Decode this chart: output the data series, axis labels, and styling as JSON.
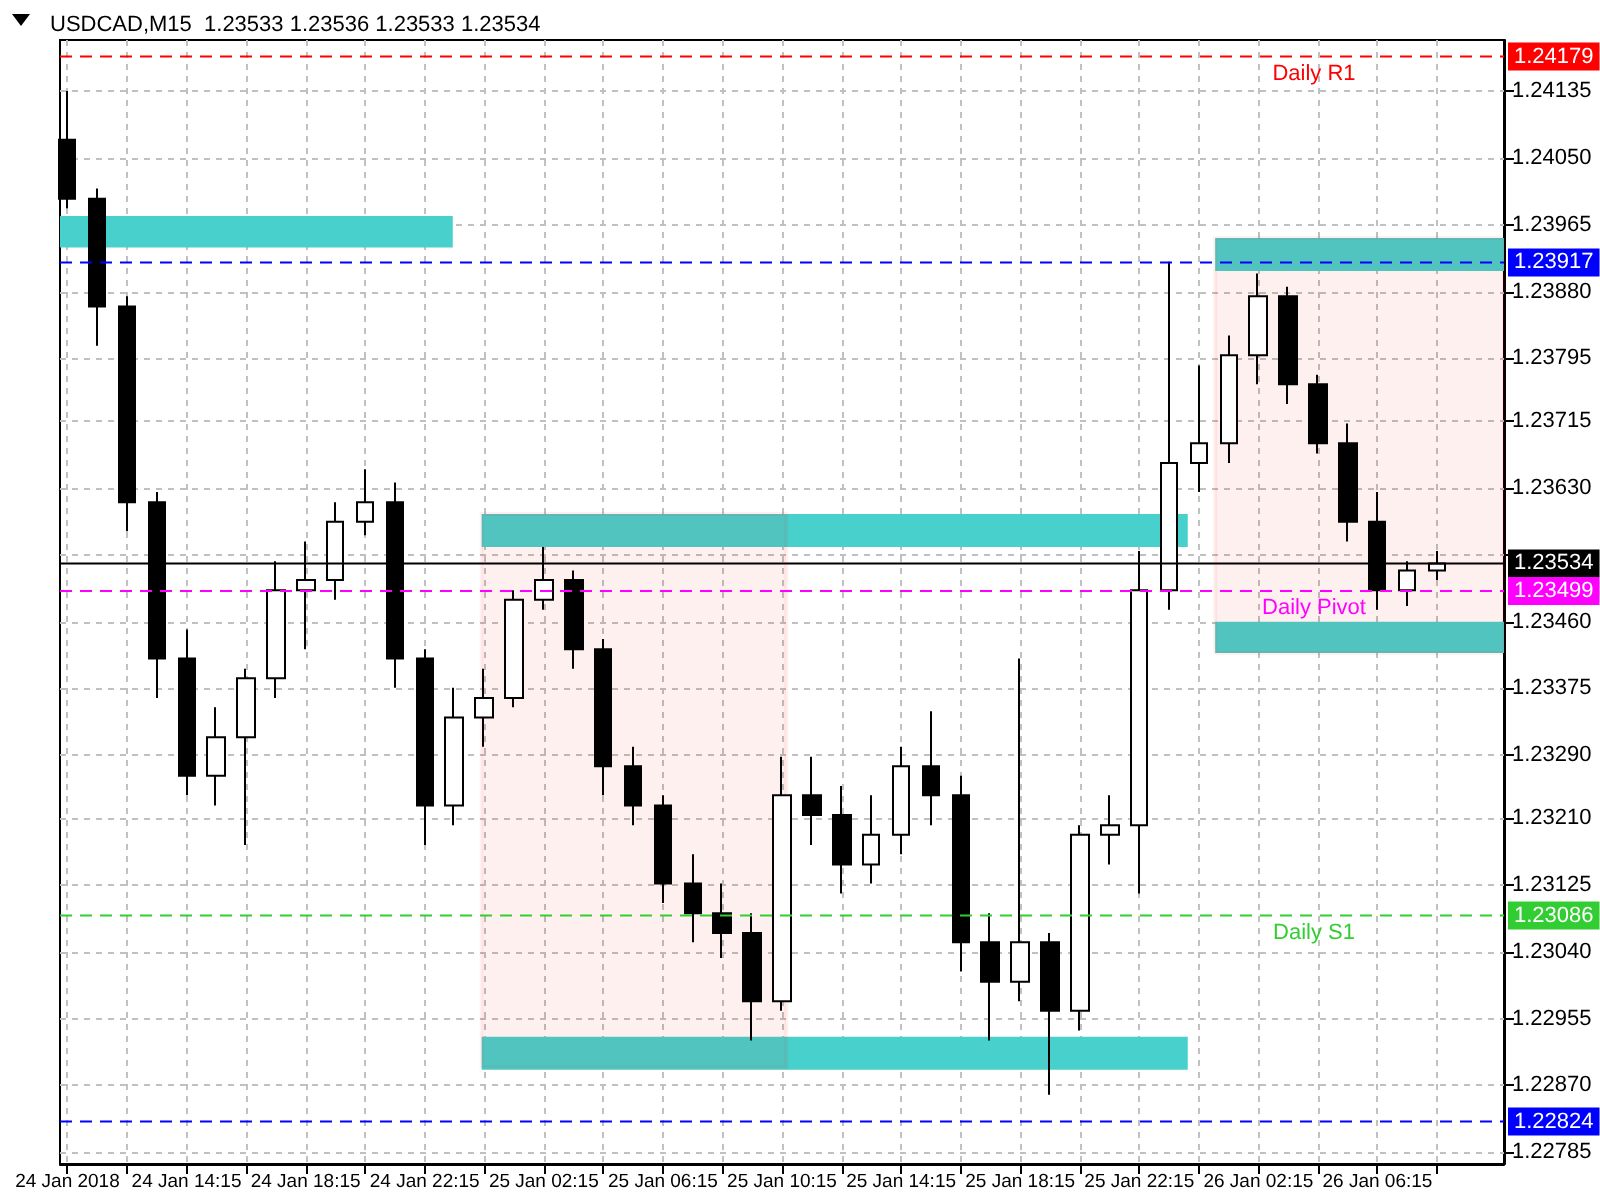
{
  "chart_data": {
    "type": "candlestick",
    "title": "USDCAD,M15  1.23533 1.23536 1.23533 1.23534",
    "x": [
      "2018-01-24T10:15",
      "2018-01-24T11:15",
      "2018-01-24T12:15",
      "2018-01-24T13:15",
      "2018-01-24T14:15",
      "2018-01-24T15:15",
      "2018-01-24T16:15",
      "2018-01-24T17:15",
      "2018-01-24T18:15",
      "2018-01-24T19:15",
      "2018-01-24T20:15",
      "2018-01-24T21:15",
      "2018-01-24T22:15",
      "2018-01-24T23:15",
      "2018-01-25T00:15",
      "2018-01-25T01:15",
      "2018-01-25T02:15",
      "2018-01-25T03:15",
      "2018-01-25T04:15",
      "2018-01-25T05:15",
      "2018-01-25T06:15",
      "2018-01-25T07:15",
      "2018-01-25T08:15",
      "2018-01-25T09:15",
      "2018-01-25T10:15",
      "2018-01-25T11:15",
      "2018-01-25T12:15",
      "2018-01-25T13:15",
      "2018-01-25T14:15",
      "2018-01-25T15:15",
      "2018-01-25T16:15",
      "2018-01-25T17:15",
      "2018-01-25T18:15",
      "2018-01-25T19:15",
      "2018-01-25T20:15",
      "2018-01-25T21:15",
      "2018-01-25T22:15",
      "2018-01-25T23:15",
      "2018-01-26T00:15",
      "2018-01-26T01:15",
      "2018-01-26T02:15",
      "2018-01-26T03:15",
      "2018-01-26T04:15",
      "2018-01-26T05:15",
      "2018-01-26T06:15",
      "2018-01-26T07:15",
      "2018-01-26T08:15"
    ],
    "ohlc": [
      [
        1.24073,
        1.24135,
        1.23986,
        1.23998
      ],
      [
        1.23998,
        1.24011,
        1.23811,
        1.23861
      ],
      [
        1.23861,
        1.23874,
        1.23575,
        1.23612
      ],
      [
        1.23612,
        1.23625,
        1.23363,
        1.23413
      ],
      [
        1.23413,
        1.2345,
        1.23239,
        1.23264
      ],
      [
        1.23264,
        1.23351,
        1.23226,
        1.23313
      ],
      [
        1.23313,
        1.234,
        1.23176,
        1.23388
      ],
      [
        1.23388,
        1.23537,
        1.23363,
        1.235
      ],
      [
        1.235,
        1.23562,
        1.23425,
        1.23513
      ],
      [
        1.23513,
        1.23612,
        1.23488,
        1.23587
      ],
      [
        1.23587,
        1.23654,
        1.2357,
        1.23612
      ],
      [
        1.23612,
        1.23637,
        1.23376,
        1.23413
      ],
      [
        1.23413,
        1.23425,
        1.23176,
        1.23226
      ],
      [
        1.23226,
        1.23376,
        1.23201,
        1.23338
      ],
      [
        1.23338,
        1.234,
        1.23301,
        1.23363
      ],
      [
        1.23363,
        1.235,
        1.23351,
        1.23488
      ],
      [
        1.23488,
        1.23555,
        1.23475,
        1.23513
      ],
      [
        1.23513,
        1.23525,
        1.234,
        1.23425
      ],
      [
        1.23425,
        1.23438,
        1.23239,
        1.23276
      ],
      [
        1.23276,
        1.23301,
        1.23201,
        1.23226
      ],
      [
        1.23226,
        1.23239,
        1.23102,
        1.23127
      ],
      [
        1.23127,
        1.23164,
        1.23052,
        1.23089
      ],
      [
        1.23089,
        1.23127,
        1.23032,
        1.23064
      ],
      [
        1.23064,
        1.23089,
        1.22927,
        1.22977
      ],
      [
        1.22977,
        1.23288,
        1.22965,
        1.23239
      ],
      [
        1.23239,
        1.23288,
        1.23176,
        1.23214
      ],
      [
        1.23214,
        1.23251,
        1.23114,
        1.23151
      ],
      [
        1.23151,
        1.23239,
        1.23127,
        1.23189
      ],
      [
        1.23189,
        1.23301,
        1.23164,
        1.23276
      ],
      [
        1.23276,
        1.23346,
        1.23201,
        1.23239
      ],
      [
        1.23239,
        1.23264,
        1.23015,
        1.23052
      ],
      [
        1.23052,
        1.23089,
        1.22927,
        1.23002
      ],
      [
        1.23002,
        1.23413,
        1.22977,
        1.23052
      ],
      [
        1.23052,
        1.23064,
        1.22858,
        1.22965
      ],
      [
        1.22965,
        1.23201,
        1.2294,
        1.23189
      ],
      [
        1.23189,
        1.23239,
        1.23151,
        1.23201
      ],
      [
        1.23201,
        1.2355,
        1.23114,
        1.235
      ],
      [
        1.235,
        1.23918,
        1.23475,
        1.23662
      ],
      [
        1.23662,
        1.23786,
        1.23625,
        1.23687
      ],
      [
        1.23687,
        1.23824,
        1.23662,
        1.23799
      ],
      [
        1.23799,
        1.23903,
        1.23762,
        1.23874
      ],
      [
        1.23874,
        1.23886,
        1.23737,
        1.23762
      ],
      [
        1.23762,
        1.23774,
        1.23674,
        1.23687
      ],
      [
        1.23687,
        1.23712,
        1.23562,
        1.23587
      ],
      [
        1.23587,
        1.23625,
        1.23475,
        1.235
      ],
      [
        1.235,
        1.23537,
        1.2348,
        1.23525
      ],
      [
        1.23525,
        1.2355,
        1.23513,
        1.23534
      ]
    ],
    "xlim": [
      "2018-01-24T10:00",
      "2018-01-26T10:30"
    ],
    "xticks": [
      {
        "value": "2018-01-24T10:15",
        "label": "24 Jan 2018"
      },
      {
        "value": "2018-01-24T12:15",
        "label": null
      },
      {
        "value": "2018-01-24T14:15",
        "label": "24 Jan 14:15"
      },
      {
        "value": "2018-01-24T16:15",
        "label": null
      },
      {
        "value": "2018-01-24T18:15",
        "label": "24 Jan 18:15"
      },
      {
        "value": "2018-01-24T20:15",
        "label": null
      },
      {
        "value": "2018-01-24T22:15",
        "label": "24 Jan 22:15"
      },
      {
        "value": "2018-01-25T00:15",
        "label": null
      },
      {
        "value": "2018-01-25T02:15",
        "label": "25 Jan 02:15"
      },
      {
        "value": "2018-01-25T04:15",
        "label": null
      },
      {
        "value": "2018-01-25T06:15",
        "label": "25 Jan 06:15"
      },
      {
        "value": "2018-01-25T08:15",
        "label": null
      },
      {
        "value": "2018-01-25T10:15",
        "label": "25 Jan 10:15"
      },
      {
        "value": "2018-01-25T12:15",
        "label": null
      },
      {
        "value": "2018-01-25T14:15",
        "label": "25 Jan 14:15"
      },
      {
        "value": "2018-01-25T16:15",
        "label": null
      },
      {
        "value": "2018-01-25T18:15",
        "label": "25 Jan 18:15"
      },
      {
        "value": "2018-01-25T20:15",
        "label": null
      },
      {
        "value": "2018-01-25T22:15",
        "label": "25 Jan 22:15"
      },
      {
        "value": "2018-01-26T00:15",
        "label": null
      },
      {
        "value": "2018-01-26T02:15",
        "label": "26 Jan 02:15"
      },
      {
        "value": "2018-01-26T04:15",
        "label": null
      },
      {
        "value": "2018-01-26T06:15",
        "label": "26 Jan 06:15"
      },
      {
        "value": "2018-01-26T08:15",
        "label": null
      }
    ],
    "ylim": [
      1.2277,
      1.242
    ],
    "yticks": [
      1.22785,
      {
        "value": 1.2287,
        "label": "1.22870"
      },
      1.22955,
      {
        "value": 1.2304,
        "label": "1.23040"
      },
      1.23125,
      {
        "value": 1.2321,
        "label": "1.23210"
      },
      {
        "value": 1.2329,
        "label": "1.23290"
      },
      1.23375,
      {
        "value": 1.2346,
        "label": "1.23460"
      },
      {
        "value": 1.23545,
        "label": null
      },
      {
        "value": 1.2363,
        "label": "1.23630"
      },
      1.23715,
      1.23795,
      {
        "value": 1.2388,
        "label": "1.23880"
      },
      1.23965,
      {
        "value": 1.2405,
        "label": "1.24050"
      },
      1.24135
    ],
    "annotations": [
      "1.24179",
      "1.23917",
      "1.23534",
      "1.23499",
      "1.23086",
      "1.22824"
    ],
    "grid": true,
    "ref_lines": [
      {
        "axis": "y",
        "value": 1.24179,
        "label": "Daily R1",
        "color": "#ff0000",
        "line_style": "dashed"
      },
      {
        "axis": "y",
        "value": 1.23917,
        "color": "#0000ff",
        "line_style": "dashed"
      },
      {
        "axis": "y",
        "value": 1.23534,
        "color": "#000000",
        "line_style": "solid"
      },
      {
        "axis": "y",
        "value": 1.23499,
        "label": "Daily Pivot",
        "color": "#ff00ff",
        "line_style": "dashed"
      },
      {
        "axis": "y",
        "value": 1.23086,
        "label": "Daily S1",
        "color": "#32cd32",
        "line_style": "dashed"
      },
      {
        "axis": "y",
        "value": 1.22824,
        "color": "#0000ff",
        "line_style": "dashed"
      }
    ],
    "bands": [
      {
        "axis": "y",
        "from": 1.23936,
        "to": 1.23976,
        "color": "#48d1cc"
      },
      {
        "axis": "y",
        "from": 1.23555,
        "to": 1.23597,
        "color": "#48d1cc"
      },
      {
        "axis": "y",
        "from": 1.2289,
        "to": 1.22932,
        "color": "#48d1cc"
      },
      {
        "axis": "y",
        "from": 1.23906,
        "to": 1.23948,
        "color": "#48d1cc"
      },
      {
        "axis": "y",
        "from": 1.2342,
        "to": 1.2346,
        "color": "#48d1cc"
      },
      {
        "axis": "y",
        "from": 1.22893,
        "to": 1.23597,
        "color": "#ff0000"
      },
      {
        "axis": "y",
        "from": 1.2342,
        "to": 1.23948,
        "color": "#ff0000"
      }
    ]
  }
}
